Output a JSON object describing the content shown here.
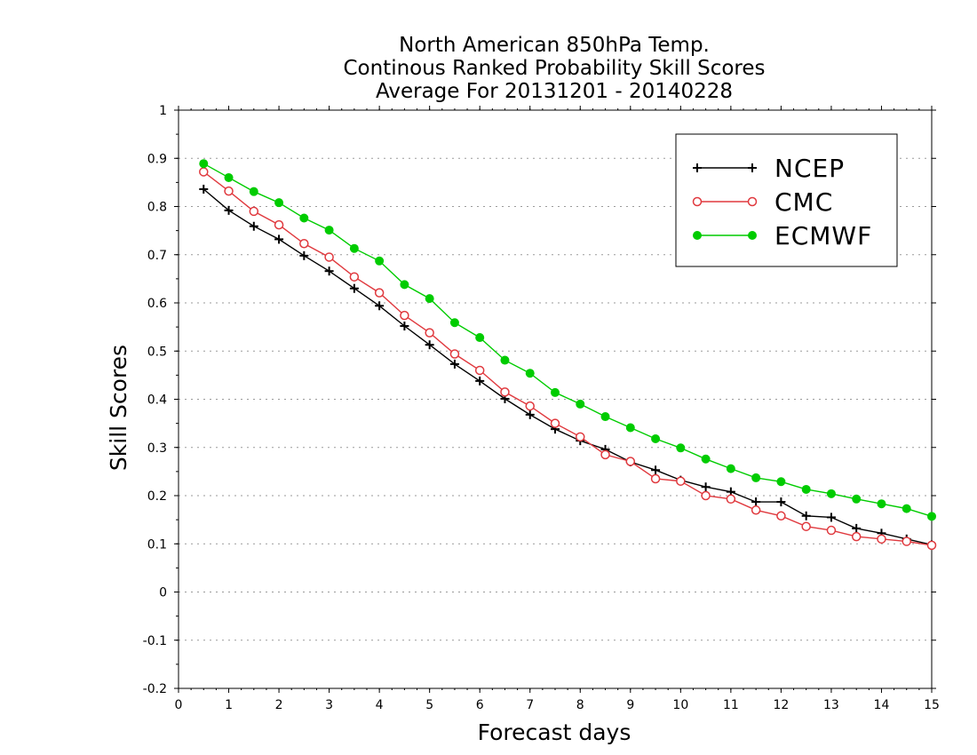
{
  "chart_data": {
    "type": "line",
    "title_lines": [
      "North American 850hPa Temp.",
      "Continous Ranked Probability Skill Scores",
      "Average For 20131201 - 20140228"
    ],
    "xlabel": "Forecast days",
    "ylabel": "Skill Scores",
    "xlim": [
      0,
      15
    ],
    "ylim": [
      -0.2,
      1
    ],
    "xticks": [
      0,
      1,
      2,
      3,
      4,
      5,
      6,
      7,
      8,
      9,
      10,
      11,
      12,
      13,
      14,
      15
    ],
    "xtick_labels": [
      "0",
      "1",
      "2",
      "3",
      "4",
      "5",
      "6",
      "7",
      "8",
      "9",
      "10",
      "11",
      "12",
      "13",
      "14",
      "15"
    ],
    "yticks": [
      -0.2,
      -0.1,
      0,
      0.1,
      0.2,
      0.3,
      0.4,
      0.5,
      0.6,
      0.7,
      0.8,
      0.9,
      1
    ],
    "ytick_labels": [
      "-0.2",
      "-0.1",
      "0",
      "0.1",
      "0.2",
      "0.3",
      "0.4",
      "0.5",
      "0.6",
      "0.7",
      "0.8",
      "0.9",
      "1"
    ],
    "grid": "horizontal dotted",
    "legend_position": "top-right",
    "x": [
      0.5,
      1,
      1.5,
      2,
      2.5,
      3,
      3.5,
      4,
      4.5,
      5,
      5.5,
      6,
      6.5,
      7,
      7.5,
      8,
      8.5,
      9,
      9.5,
      10,
      10.5,
      11,
      11.5,
      12,
      12.5,
      13,
      13.5,
      14,
      14.5,
      15
    ],
    "series": [
      {
        "name": "NCEP",
        "color": "#000000",
        "marker": "plus",
        "values": [
          0.836,
          0.792,
          0.759,
          0.732,
          0.698,
          0.666,
          0.63,
          0.594,
          0.552,
          0.513,
          0.473,
          0.438,
          0.401,
          0.368,
          0.338,
          0.314,
          0.296,
          0.27,
          0.253,
          0.232,
          0.218,
          0.208,
          0.187,
          0.187,
          0.158,
          0.155,
          0.132,
          0.122,
          0.11,
          0.098
        ]
      },
      {
        "name": "CMC",
        "color": "#e0393e",
        "marker": "open-circle",
        "values": [
          0.872,
          0.832,
          0.79,
          0.762,
          0.723,
          0.695,
          0.654,
          0.621,
          0.574,
          0.538,
          0.494,
          0.46,
          0.415,
          0.386,
          0.35,
          0.322,
          0.285,
          0.271,
          0.235,
          0.23,
          0.2,
          0.193,
          0.17,
          0.158,
          0.136,
          0.128,
          0.115,
          0.11,
          0.105,
          0.097
        ]
      },
      {
        "name": "ECMWF",
        "color": "#00cc00",
        "marker": "filled-circle",
        "values": [
          0.889,
          0.86,
          0.831,
          0.808,
          0.776,
          0.751,
          0.713,
          0.687,
          0.638,
          0.609,
          0.559,
          0.528,
          0.481,
          0.454,
          0.414,
          0.39,
          0.364,
          0.341,
          0.318,
          0.299,
          0.276,
          0.256,
          0.237,
          0.229,
          0.213,
          0.204,
          0.193,
          0.183,
          0.173,
          0.157
        ]
      }
    ]
  }
}
